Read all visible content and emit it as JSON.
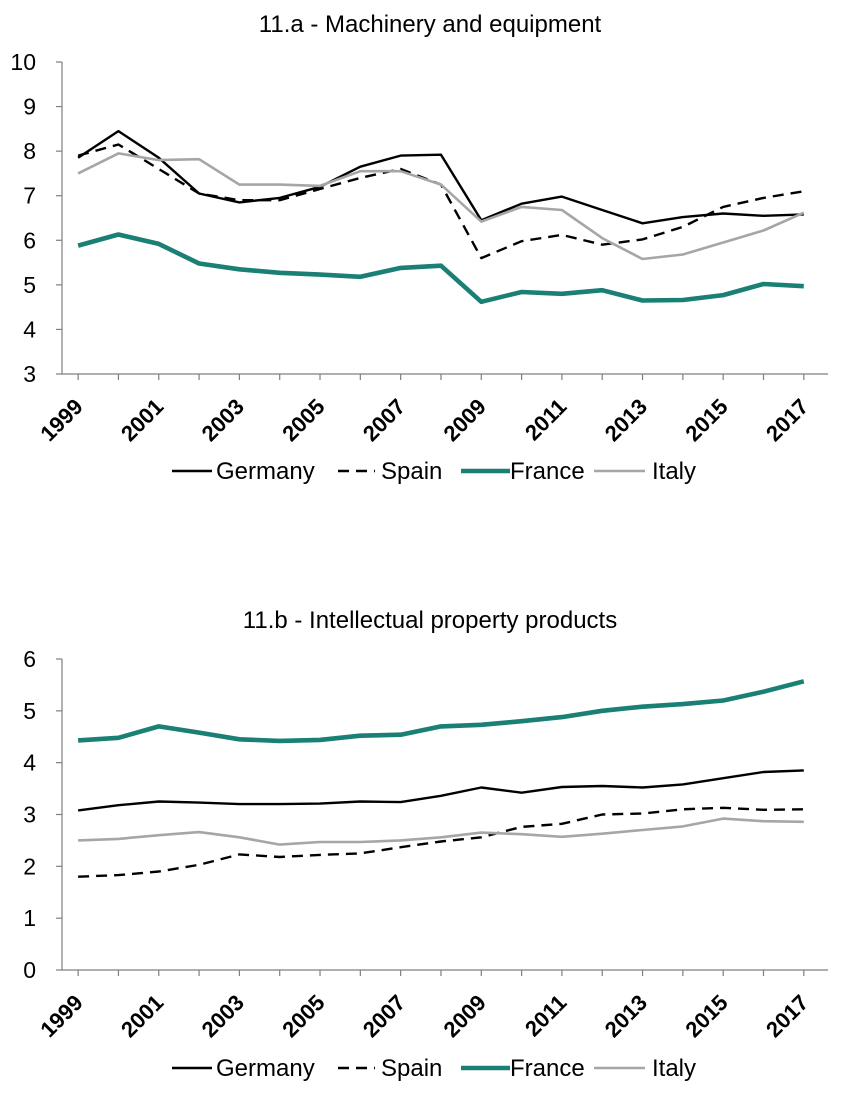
{
  "colors": {
    "germany": "#000000",
    "spain": "#000000",
    "france": "#1a7f74",
    "italy": "#a6a6a6",
    "axis": "#7f7f7f"
  },
  "chart_data": [
    {
      "type": "line",
      "title": "11.a - Machinery and equipment",
      "xlabel": "",
      "ylabel": "",
      "ylim": [
        3,
        10
      ],
      "yticks": [
        "3",
        "4",
        "5",
        "6",
        "7",
        "8",
        "9",
        "10"
      ],
      "xticks": [
        "1999",
        "2001",
        "2003",
        "2005",
        "2007",
        "2009",
        "2011",
        "2013",
        "2015",
        "2017"
      ],
      "x": [
        1999,
        2000,
        2001,
        2002,
        2003,
        2004,
        2005,
        2006,
        2007,
        2008,
        2009,
        2010,
        2011,
        2012,
        2013,
        2014,
        2015,
        2016,
        2017
      ],
      "grid": false,
      "legend_position": "bottom",
      "series": [
        {
          "name": "Germany",
          "style": "solid",
          "values": [
            7.85,
            8.45,
            7.85,
            7.05,
            6.85,
            6.95,
            7.2,
            7.65,
            7.9,
            7.92,
            6.45,
            6.82,
            6.98,
            6.68,
            6.38,
            6.52,
            6.6,
            6.55,
            6.58
          ]
        },
        {
          "name": "Spain",
          "style": "dashed",
          "values": [
            7.9,
            8.15,
            7.6,
            7.05,
            6.9,
            6.9,
            7.15,
            7.4,
            7.6,
            7.25,
            5.6,
            5.98,
            6.12,
            5.9,
            6.02,
            6.3,
            6.75,
            6.95,
            7.1
          ]
        },
        {
          "name": "France",
          "style": "thick",
          "values": [
            5.88,
            6.13,
            5.92,
            5.48,
            5.35,
            5.27,
            5.23,
            5.18,
            5.38,
            5.43,
            4.62,
            4.84,
            4.8,
            4.88,
            4.65,
            4.66,
            4.77,
            5.02,
            4.97
          ]
        },
        {
          "name": "Italy",
          "style": "light",
          "values": [
            7.5,
            7.95,
            7.8,
            7.82,
            7.25,
            7.25,
            7.22,
            7.55,
            7.55,
            7.25,
            6.42,
            6.75,
            6.68,
            6.05,
            5.58,
            5.68,
            5.95,
            6.22,
            6.62
          ]
        }
      ]
    },
    {
      "type": "line",
      "title": "11.b - Intellectual property products",
      "xlabel": "",
      "ylabel": "",
      "ylim": [
        0,
        6
      ],
      "yticks": [
        "0",
        "1",
        "2",
        "3",
        "4",
        "5",
        "6"
      ],
      "xticks": [
        "1999",
        "2001",
        "2003",
        "2005",
        "2007",
        "2009",
        "2011",
        "2013",
        "2015",
        "2017"
      ],
      "x": [
        1999,
        2000,
        2001,
        2002,
        2003,
        2004,
        2005,
        2006,
        2007,
        2008,
        2009,
        2010,
        2011,
        2012,
        2013,
        2014,
        2015,
        2016,
        2017
      ],
      "grid": false,
      "legend_position": "bottom",
      "series": [
        {
          "name": "Germany",
          "style": "solid",
          "values": [
            3.08,
            3.18,
            3.25,
            3.23,
            3.2,
            3.2,
            3.21,
            3.25,
            3.24,
            3.36,
            3.52,
            3.42,
            3.53,
            3.55,
            3.52,
            3.58,
            3.7,
            3.82,
            3.85
          ]
        },
        {
          "name": "Spain",
          "style": "dashed",
          "values": [
            1.8,
            1.83,
            1.9,
            2.03,
            2.23,
            2.18,
            2.22,
            2.25,
            2.37,
            2.48,
            2.56,
            2.76,
            2.82,
            3.0,
            3.02,
            3.1,
            3.13,
            3.09,
            3.1
          ]
        },
        {
          "name": "France",
          "style": "thick",
          "values": [
            4.43,
            4.48,
            4.7,
            4.58,
            4.45,
            4.42,
            4.44,
            4.52,
            4.54,
            4.7,
            4.73,
            4.8,
            4.88,
            5.0,
            5.08,
            5.13,
            5.2,
            5.37,
            5.57
          ]
        },
        {
          "name": "Italy",
          "style": "light",
          "values": [
            2.5,
            2.53,
            2.6,
            2.66,
            2.56,
            2.42,
            2.47,
            2.47,
            2.5,
            2.56,
            2.65,
            2.62,
            2.57,
            2.63,
            2.7,
            2.77,
            2.92,
            2.87,
            2.86
          ]
        }
      ]
    }
  ]
}
